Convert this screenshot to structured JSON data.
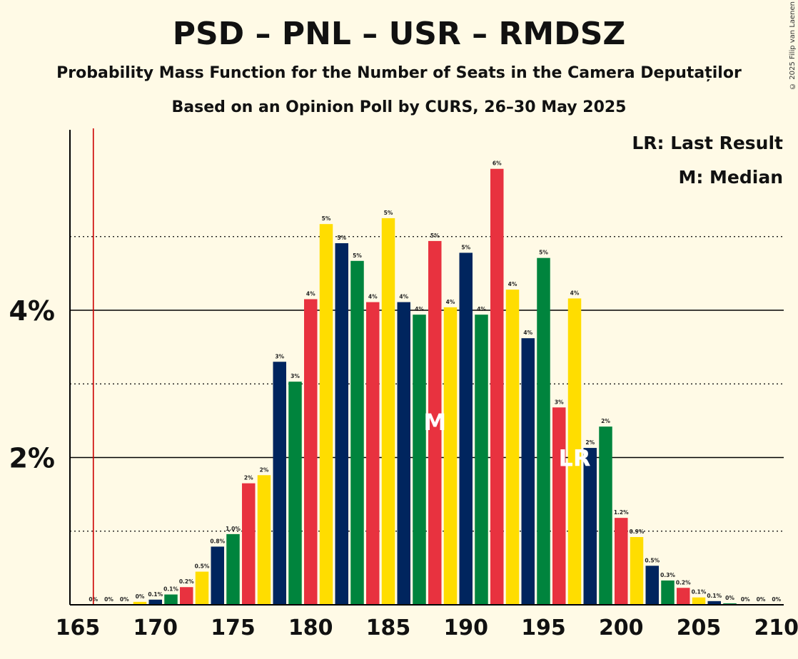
{
  "title": "PSD – PNL – USR – RMDSZ",
  "subtitle": "Probability Mass Function for the Number of Seats in the Camera Deputaților",
  "source": "Based on an Opinion Poll by CURS, 26–30 May 2025",
  "copyright": "© 2025 Filip van Laenen",
  "legend": {
    "last_result": "LR: Last Result",
    "median": "M: Median"
  },
  "colors": {
    "background": "#fffae6",
    "psd": "#e8323f",
    "pnl": "#ffdd00",
    "usr": "#00255e",
    "rmdsz": "#00843d",
    "last_result_line": "#cc0000"
  },
  "chart_data": {
    "type": "bar",
    "x": [
      166,
      167,
      168,
      169,
      170,
      171,
      172,
      173,
      174,
      175,
      176,
      177,
      178,
      179,
      180,
      181,
      182,
      183,
      184,
      185,
      186,
      187,
      188,
      189,
      190,
      191,
      192,
      193,
      194,
      195,
      196,
      197,
      198,
      199,
      200,
      201,
      202,
      203,
      204,
      205,
      206,
      207,
      208,
      209,
      210
    ],
    "values": [
      0.0,
      0.0,
      0.0,
      0.04,
      0.07,
      0.14,
      0.24,
      0.45,
      0.79,
      0.96,
      1.65,
      1.76,
      3.3,
      3.03,
      4.15,
      5.17,
      4.91,
      4.67,
      4.11,
      5.25,
      4.11,
      3.94,
      4.94,
      4.04,
      4.78,
      3.94,
      5.92,
      4.28,
      3.62,
      4.71,
      2.68,
      4.16,
      2.13,
      2.42,
      1.18,
      0.92,
      0.53,
      0.33,
      0.23,
      0.1,
      0.05,
      0.02,
      0.0,
      0.0,
      0.0
    ],
    "labels": [
      "0%",
      "0%",
      "0%",
      "0%",
      "0.1%",
      "0.1%",
      "0.2%",
      "0.5%",
      "0.8%",
      "1.0%",
      "2%",
      "2%",
      "3%",
      "3%",
      "4%",
      "5%",
      "5%",
      "5%",
      "4%",
      "5%",
      "4%",
      "4%",
      "5%",
      "4%",
      "5%",
      "4%",
      "6%",
      "4%",
      "4%",
      "5%",
      "3%",
      "4%",
      "2%",
      "2%",
      "1.2%",
      "0.9%",
      "0.5%",
      "0.3%",
      "0.2%",
      "0.1%",
      "0.1%",
      "0%",
      "0%",
      "0%",
      "0%"
    ],
    "bar_colors": [
      "#e8323f",
      "#ffdd00",
      "#00255e",
      "#ffdd00",
      "#00255e",
      "#00843d",
      "#e8323f",
      "#ffdd00",
      "#00255e",
      "#00843d",
      "#e8323f",
      "#ffdd00",
      "#00255e",
      "#00843d",
      "#e8323f",
      "#ffdd00",
      "#00255e",
      "#00843d",
      "#e8323f",
      "#ffdd00",
      "#00255e",
      "#00843d",
      "#e8323f",
      "#ffdd00",
      "#00255e",
      "#00843d",
      "#e8323f",
      "#ffdd00",
      "#00255e",
      "#00843d",
      "#e8323f",
      "#ffdd00",
      "#00255e",
      "#00843d",
      "#e8323f",
      "#ffdd00",
      "#00255e",
      "#00843d",
      "#e8323f",
      "#ffdd00",
      "#00255e",
      "#00843d",
      "#e8323f",
      "#ffdd00",
      "#00255e"
    ],
    "xlim": [
      165,
      210
    ],
    "ylim": [
      0,
      6.45
    ],
    "x_ticks": [
      165,
      170,
      175,
      180,
      185,
      190,
      195,
      200,
      205,
      210
    ],
    "y_ticks": [
      {
        "value": 2,
        "label": "2%"
      },
      {
        "value": 4,
        "label": "4%"
      }
    ],
    "minor_gridlines": [
      1,
      3,
      5
    ],
    "last_result_line": 166,
    "median": {
      "x": 188,
      "label": "M"
    },
    "last_result": {
      "x": 197,
      "label": "LR"
    },
    "legend_position": "top-right"
  }
}
